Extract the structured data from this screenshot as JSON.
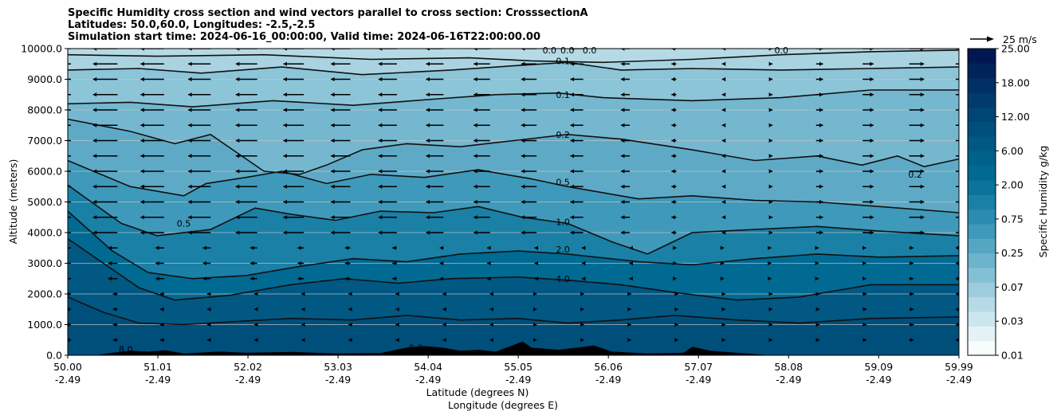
{
  "title": {
    "line1": "Specific Humidity cross section and wind vectors parallel to cross section: CrosssectionA",
    "line2": "Latitudes: 50.0,60.0, Longitudes: -2.5,-2.5",
    "line3": "Simulation start time: 2024-06-16_00:00:00, Valid time: 2024-06-16T22:00:00.00"
  },
  "chart_data": {
    "type": "heatmap",
    "subtype": "filled-contour cross section with contour lines and wind vectors",
    "xlabel_lat": "Latitude (degrees N)",
    "xlabel_lon": "Longitude (degrees E)",
    "ylabel": "Altitude (meters)",
    "xlim": [
      50.0,
      59.99
    ],
    "ylim": [
      0,
      10000
    ],
    "grid": "horizontal",
    "x_ticks": [
      {
        "lat": "50.00",
        "lon": "-2.49"
      },
      {
        "lat": "51.01",
        "lon": "-2.49"
      },
      {
        "lat": "52.02",
        "lon": "-2.49"
      },
      {
        "lat": "53.03",
        "lon": "-2.49"
      },
      {
        "lat": "54.04",
        "lon": "-2.49"
      },
      {
        "lat": "55.05",
        "lon": "-2.49"
      },
      {
        "lat": "56.06",
        "lon": "-2.49"
      },
      {
        "lat": "57.07",
        "lon": "-2.49"
      },
      {
        "lat": "58.08",
        "lon": "-2.49"
      },
      {
        "lat": "59.09",
        "lon": "-2.49"
      },
      {
        "lat": "59.99",
        "lon": "-2.49"
      }
    ],
    "y_ticks": [
      "0.0",
      "1000.0",
      "2000.0",
      "3000.0",
      "4000.0",
      "5000.0",
      "6000.0",
      "7000.0",
      "8000.0",
      "9000.0",
      "10000.0"
    ],
    "colorbar": {
      "label": "Specific Humidity g/kg",
      "tick_labels": [
        "0.01",
        "0.03",
        "0.07",
        "0.25",
        "0.75",
        "2.00",
        "6.00",
        "12.00",
        "18.00",
        "25.00"
      ],
      "colors": [
        "#f7fcfd",
        "#e4f2f5",
        "#cce6ed",
        "#b5dae5",
        "#9dcddd",
        "#84c0d5",
        "#6cb3cc",
        "#55a6c3",
        "#3f99ba",
        "#2b8cb0",
        "#1a80a6",
        "#0b749c",
        "#006a93",
        "#00618a",
        "#005883",
        "#004f7b",
        "#004573",
        "#003b6b",
        "#002f63",
        "#00245a",
        "#001852"
      ]
    },
    "reference_vector": {
      "label": "25 m/s",
      "value": 25
    },
    "contour_labels": [
      {
        "text": "0.1",
        "x": 55.55,
        "y": 9600
      },
      {
        "text": "0.1",
        "x": 55.55,
        "y": 8500
      },
      {
        "text": "0.2",
        "x": 55.55,
        "y": 7200
      },
      {
        "text": "0.5",
        "x": 55.55,
        "y": 5650
      },
      {
        "text": "1.0",
        "x": 55.55,
        "y": 4350
      },
      {
        "text": "2.0",
        "x": 55.55,
        "y": 3450
      },
      {
        "text": "4.0",
        "x": 55.55,
        "y": 2500
      },
      {
        "text": "0.5",
        "x": 51.3,
        "y": 4300
      },
      {
        "text": "0.2",
        "x": 59.5,
        "y": 5900
      },
      {
        "text": "8.0",
        "x": 50.65,
        "y": 200
      },
      {
        "text": "8.0",
        "x": 53.9,
        "y": 250
      },
      {
        "text": "0.0",
        "x": 55.4,
        "y": 9950
      },
      {
        "text": "0.0",
        "x": 55.6,
        "y": 9950
      },
      {
        "text": "0.0",
        "x": 55.85,
        "y": 9950
      },
      {
        "text": "0.0",
        "x": 58.0,
        "y": 9950
      }
    ],
    "contour_levels": [
      {
        "value": 0.05,
        "points": [
          [
            50.0,
            9800
          ],
          [
            51.0,
            9750
          ],
          [
            52.2,
            9800
          ],
          [
            53.4,
            9650
          ],
          [
            54.5,
            9700
          ],
          [
            55.2,
            9600
          ],
          [
            56.0,
            9550
          ],
          [
            57.0,
            9650
          ],
          [
            58.0,
            9800
          ],
          [
            59.0,
            9900
          ],
          [
            59.99,
            9950
          ]
        ]
      },
      {
        "value": 0.1,
        "points": [
          [
            50.0,
            9300
          ],
          [
            50.8,
            9350
          ],
          [
            51.5,
            9200
          ],
          [
            52.4,
            9400
          ],
          [
            53.3,
            9150
          ],
          [
            54.3,
            9300
          ],
          [
            55.05,
            9450
          ],
          [
            55.6,
            9550
          ],
          [
            56.2,
            9300
          ],
          [
            57.0,
            9350
          ],
          [
            58.0,
            9300
          ],
          [
            59.0,
            9350
          ],
          [
            59.99,
            9400
          ]
        ]
      },
      {
        "value": 0.1,
        "points": [
          [
            50.0,
            8200
          ],
          [
            50.7,
            8250
          ],
          [
            51.4,
            8100
          ],
          [
            52.3,
            8300
          ],
          [
            53.2,
            8150
          ],
          [
            54.1,
            8350
          ],
          [
            54.8,
            8500
          ],
          [
            55.5,
            8550
          ],
          [
            56.0,
            8400
          ],
          [
            57.0,
            8300
          ],
          [
            58.0,
            8400
          ],
          [
            59.0,
            8650
          ],
          [
            59.99,
            8650
          ]
        ]
      },
      {
        "value": 0.2,
        "points": [
          [
            50.0,
            7700
          ],
          [
            50.7,
            7300
          ],
          [
            51.2,
            6900
          ],
          [
            51.6,
            7200
          ],
          [
            51.9,
            6600
          ],
          [
            52.2,
            6000
          ],
          [
            52.6,
            5900
          ],
          [
            52.9,
            6200
          ],
          [
            53.3,
            6700
          ],
          [
            53.8,
            6900
          ],
          [
            54.4,
            6800
          ],
          [
            55.0,
            7000
          ],
          [
            55.6,
            7200
          ],
          [
            56.2,
            7050
          ],
          [
            57.0,
            6700
          ],
          [
            57.7,
            6350
          ],
          [
            58.4,
            6500
          ],
          [
            58.9,
            6200
          ],
          [
            59.3,
            6500
          ],
          [
            59.6,
            6150
          ],
          [
            59.99,
            6400
          ]
        ]
      },
      {
        "value": 0.5,
        "points": [
          [
            50.0,
            6350
          ],
          [
            50.7,
            5500
          ],
          [
            51.3,
            5200
          ],
          [
            51.55,
            5600
          ],
          [
            52.0,
            5800
          ],
          [
            52.4,
            6000
          ],
          [
            52.9,
            5600
          ],
          [
            53.4,
            5900
          ],
          [
            54.0,
            5800
          ],
          [
            54.6,
            6050
          ],
          [
            55.2,
            5750
          ],
          [
            55.6,
            5500
          ],
          [
            56.4,
            5100
          ],
          [
            57.0,
            5200
          ],
          [
            57.7,
            5050
          ],
          [
            58.4,
            5000
          ],
          [
            59.1,
            4850
          ],
          [
            59.99,
            4650
          ]
        ]
      },
      {
        "value": 1.0,
        "points": [
          [
            50.0,
            5550
          ],
          [
            50.6,
            4300
          ],
          [
            51.0,
            3900
          ],
          [
            51.6,
            4100
          ],
          [
            52.1,
            4800
          ],
          [
            52.5,
            4600
          ],
          [
            53.0,
            4400
          ],
          [
            53.5,
            4700
          ],
          [
            54.1,
            4650
          ],
          [
            54.6,
            4850
          ],
          [
            55.1,
            4500
          ],
          [
            55.6,
            4300
          ],
          [
            56.1,
            3700
          ],
          [
            56.5,
            3300
          ],
          [
            57.0,
            4000
          ],
          [
            57.7,
            4100
          ],
          [
            58.4,
            4200
          ],
          [
            59.1,
            4050
          ],
          [
            59.99,
            3900
          ]
        ]
      },
      {
        "value": 2.0,
        "points": [
          [
            50.0,
            4700
          ],
          [
            50.5,
            3400
          ],
          [
            50.9,
            2700
          ],
          [
            51.4,
            2500
          ],
          [
            52.0,
            2600
          ],
          [
            52.6,
            2900
          ],
          [
            53.2,
            3150
          ],
          [
            53.8,
            3050
          ],
          [
            54.4,
            3300
          ],
          [
            55.05,
            3400
          ],
          [
            55.6,
            3300
          ],
          [
            56.4,
            3050
          ],
          [
            57.0,
            2950
          ],
          [
            57.7,
            3150
          ],
          [
            58.4,
            3300
          ],
          [
            59.1,
            3200
          ],
          [
            59.99,
            3250
          ]
        ]
      },
      {
        "value": 4.0,
        "points": [
          [
            50.0,
            3800
          ],
          [
            50.4,
            3000
          ],
          [
            50.8,
            2200
          ],
          [
            51.2,
            1800
          ],
          [
            51.8,
            1950
          ],
          [
            52.5,
            2300
          ],
          [
            53.1,
            2500
          ],
          [
            53.7,
            2350
          ],
          [
            54.3,
            2500
          ],
          [
            55.05,
            2550
          ],
          [
            55.6,
            2450
          ],
          [
            56.2,
            2300
          ],
          [
            56.8,
            2050
          ],
          [
            57.5,
            1800
          ],
          [
            58.2,
            1900
          ],
          [
            59.0,
            2300
          ],
          [
            59.99,
            2300
          ]
        ]
      },
      {
        "value": 8.0,
        "points": [
          [
            50.0,
            1900
          ],
          [
            50.4,
            1400
          ],
          [
            50.8,
            1050
          ],
          [
            51.3,
            1000
          ],
          [
            51.9,
            1100
          ],
          [
            52.5,
            1200
          ],
          [
            53.2,
            1150
          ],
          [
            53.8,
            1300
          ],
          [
            54.4,
            1150
          ],
          [
            55.05,
            1200
          ],
          [
            55.6,
            1050
          ],
          [
            56.2,
            1150
          ],
          [
            56.8,
            1300
          ],
          [
            57.5,
            1150
          ],
          [
            58.2,
            1050
          ],
          [
            59.0,
            1200
          ],
          [
            59.99,
            1250
          ]
        ]
      }
    ],
    "terrain": [
      [
        50.0,
        0
      ],
      [
        50.3,
        0
      ],
      [
        50.5,
        80
      ],
      [
        50.7,
        150
      ],
      [
        50.9,
        120
      ],
      [
        51.1,
        160
      ],
      [
        51.3,
        60
      ],
      [
        51.7,
        120
      ],
      [
        52.0,
        80
      ],
      [
        52.5,
        110
      ],
      [
        53.0,
        60
      ],
      [
        53.5,
        70
      ],
      [
        53.8,
        250
      ],
      [
        54.0,
        300
      ],
      [
        54.2,
        250
      ],
      [
        54.4,
        150
      ],
      [
        54.6,
        180
      ],
      [
        54.8,
        120
      ],
      [
        55.1,
        450
      ],
      [
        55.2,
        250
      ],
      [
        55.5,
        180
      ],
      [
        55.9,
        320
      ],
      [
        56.1,
        120
      ],
      [
        56.5,
        60
      ],
      [
        56.9,
        80
      ],
      [
        57.0,
        280
      ],
      [
        57.2,
        150
      ],
      [
        57.6,
        60
      ],
      [
        57.9,
        0
      ],
      [
        59.99,
        0
      ]
    ],
    "wind_upper_u": -10,
    "wind_lower_u": 3
  }
}
